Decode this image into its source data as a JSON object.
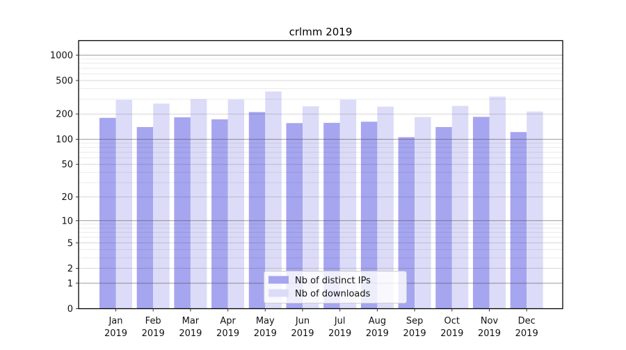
{
  "figure": {
    "title": "crlmm 2019",
    "background": "#ffffff"
  },
  "chart_data": {
    "type": "bar",
    "title": "crlmm 2019",
    "categories": [
      "Jan",
      "Feb",
      "Mar",
      "Apr",
      "May",
      "Jun",
      "Jul",
      "Aug",
      "Sep",
      "Oct",
      "Nov",
      "Dec"
    ],
    "category_year": "2019",
    "series": [
      {
        "name": "Nb of distinct IPs",
        "color": "#a5a5f0",
        "values": [
          180,
          140,
          183,
          173,
          211,
          156,
          157,
          162,
          106,
          140,
          185,
          122
        ]
      },
      {
        "name": "Nb of downloads",
        "color": "#dcdcf8",
        "values": [
          295,
          266,
          300,
          297,
          371,
          247,
          296,
          245,
          184,
          250,
          322,
          214
        ]
      }
    ],
    "xlabel": "",
    "ylabel": "",
    "yscale": "log1p",
    "ylim": [
      0,
      1415
    ],
    "ytick_labels": [
      "0",
      "1",
      "2",
      "5",
      "10",
      "20",
      "50",
      "100",
      "200",
      "500",
      "1000"
    ],
    "ytick_values": [
      0,
      1,
      2,
      5,
      10,
      20,
      50,
      100,
      200,
      500,
      1000
    ],
    "minor_grid_values": [
      3,
      4,
      6,
      7,
      8,
      9,
      30,
      40,
      60,
      70,
      80,
      90,
      300,
      400,
      600,
      700,
      800,
      900
    ],
    "grid": true,
    "legend_position": "bottom-center"
  }
}
